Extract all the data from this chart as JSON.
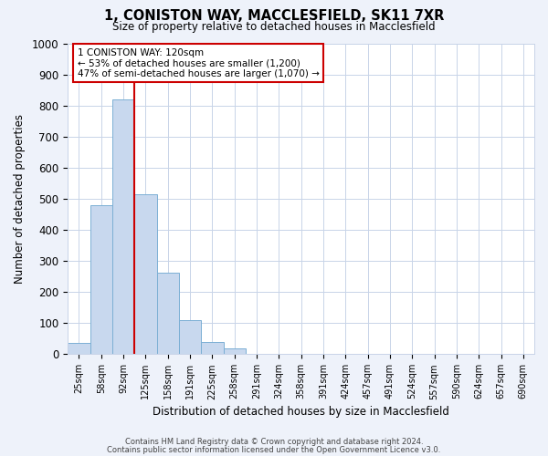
{
  "title": "1, CONISTON WAY, MACCLESFIELD, SK11 7XR",
  "subtitle": "Size of property relative to detached houses in Macclesfield",
  "xlabel": "Distribution of detached houses by size in Macclesfield",
  "ylabel": "Number of detached properties",
  "bar_labels": [
    "25sqm",
    "58sqm",
    "92sqm",
    "125sqm",
    "158sqm",
    "191sqm",
    "225sqm",
    "258sqm",
    "291sqm",
    "324sqm",
    "358sqm",
    "391sqm",
    "424sqm",
    "457sqm",
    "491sqm",
    "524sqm",
    "557sqm",
    "590sqm",
    "624sqm",
    "657sqm",
    "690sqm"
  ],
  "bar_values": [
    35,
    480,
    820,
    515,
    263,
    110,
    40,
    20,
    0,
    0,
    0,
    0,
    0,
    0,
    0,
    0,
    0,
    0,
    0,
    0,
    0
  ],
  "bar_color": "#c8d8ee",
  "bar_edge_color": "#7bafd4",
  "vline_x_index": 2.5,
  "vline_color": "#cc0000",
  "ylim": [
    0,
    1000
  ],
  "yticks": [
    0,
    100,
    200,
    300,
    400,
    500,
    600,
    700,
    800,
    900,
    1000
  ],
  "annotation_title": "1 CONISTON WAY: 120sqm",
  "annotation_line1": "← 53% of detached houses are smaller (1,200)",
  "annotation_line2": "47% of semi-detached houses are larger (1,070) →",
  "annotation_box_color": "#ffffff",
  "annotation_box_edge": "#cc0000",
  "footer1": "Contains HM Land Registry data © Crown copyright and database right 2024.",
  "footer2": "Contains public sector information licensed under the Open Government Licence v3.0.",
  "grid_color": "#c8d4e8",
  "background_color": "#eef2fa",
  "plot_bg_color": "#ffffff"
}
